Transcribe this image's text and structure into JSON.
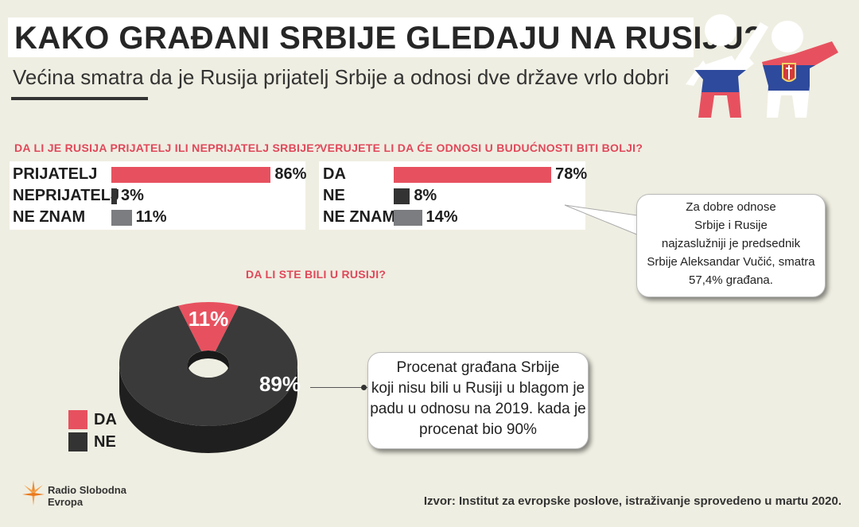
{
  "header": {
    "title": "KAKO GRAĐANI SRBIJE GLEDAJU NA RUSIJU?",
    "subtitle": "Većina smatra da je Rusija prijatelj Srbije a odnosi dve države vrlo dobri"
  },
  "colors": {
    "red": "#e7515f",
    "dark": "#333333",
    "grey": "#7b7d80",
    "accent_text": "#e0485a"
  },
  "chart_data": [
    {
      "type": "bar",
      "title": "DA LI JE RUSIJA PRIJATELJ ILI NEPRIJATELJ SRBIJE?",
      "categories": [
        "PRIJATELJ",
        "NEPRIJATELJ",
        "NE ZNAM"
      ],
      "values": [
        86,
        3,
        11
      ],
      "labels": [
        "86%",
        "3%",
        "11%"
      ]
    },
    {
      "type": "bar",
      "title": "VERUJETE LI DA ĆE ODNOSI U BUDUĆNOSTI BITI BOLJI?",
      "categories": [
        "DA",
        "NE",
        "NE ZNAM"
      ],
      "values": [
        78,
        8,
        14
      ],
      "labels": [
        "78%",
        "8%",
        "14%"
      ]
    },
    {
      "type": "pie",
      "title": "DA LI STE BILI U RUSIJI?",
      "categories": [
        "DA",
        "NE"
      ],
      "values": [
        11,
        89
      ],
      "labels": [
        "11%",
        "89%"
      ],
      "legend_position": "bottom-left"
    }
  ],
  "callouts": {
    "vucic": [
      "Za dobre odnose",
      "Srbije i Rusije",
      "najzaslužniji je predsednik",
      "Srbije Aleksandar Vučić, smatra",
      "57,4% građana."
    ],
    "pie_note": [
      "Procenat građana Srbije",
      "koji nisu bili u Rusiji u blagom je",
      "padu u odnosu na 2019. kada je",
      "procenat bio 90%"
    ]
  },
  "footer": {
    "logo_line1": "Radio Slobodna",
    "logo_line2": "Evropa",
    "source": "Izvor: Institut za evropske poslove, istraživanje sprovedeno u martu 2020."
  }
}
